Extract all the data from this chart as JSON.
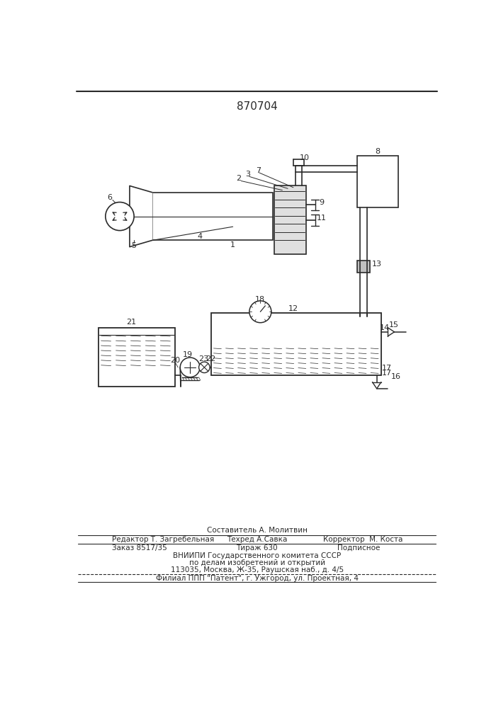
{
  "title": "870704",
  "bg_color": "#ffffff",
  "line_color": "#2a2a2a",
  "footer": {
    "sestavitel": "Составитель А. Молитвин",
    "redaktor": "Редактор Т. Загребельная",
    "tehred": "Техред А.Савка",
    "korrektor": "Корректор  М. Коста",
    "zakaz": "Заказ 8517/35",
    "tirazh": "Тираж 630",
    "podpisnoe": "Подписное",
    "vniipи": "ВНИИПИ Государственного комитета СССР",
    "po_delam": "по делам изобретений и открытий",
    "address": "113035, Москва, Ж-35, Раушская наб., д. 4/5",
    "filial": "Филиал ППП \"Патент\", г. Ужгород, ул. Проектная, 4"
  }
}
